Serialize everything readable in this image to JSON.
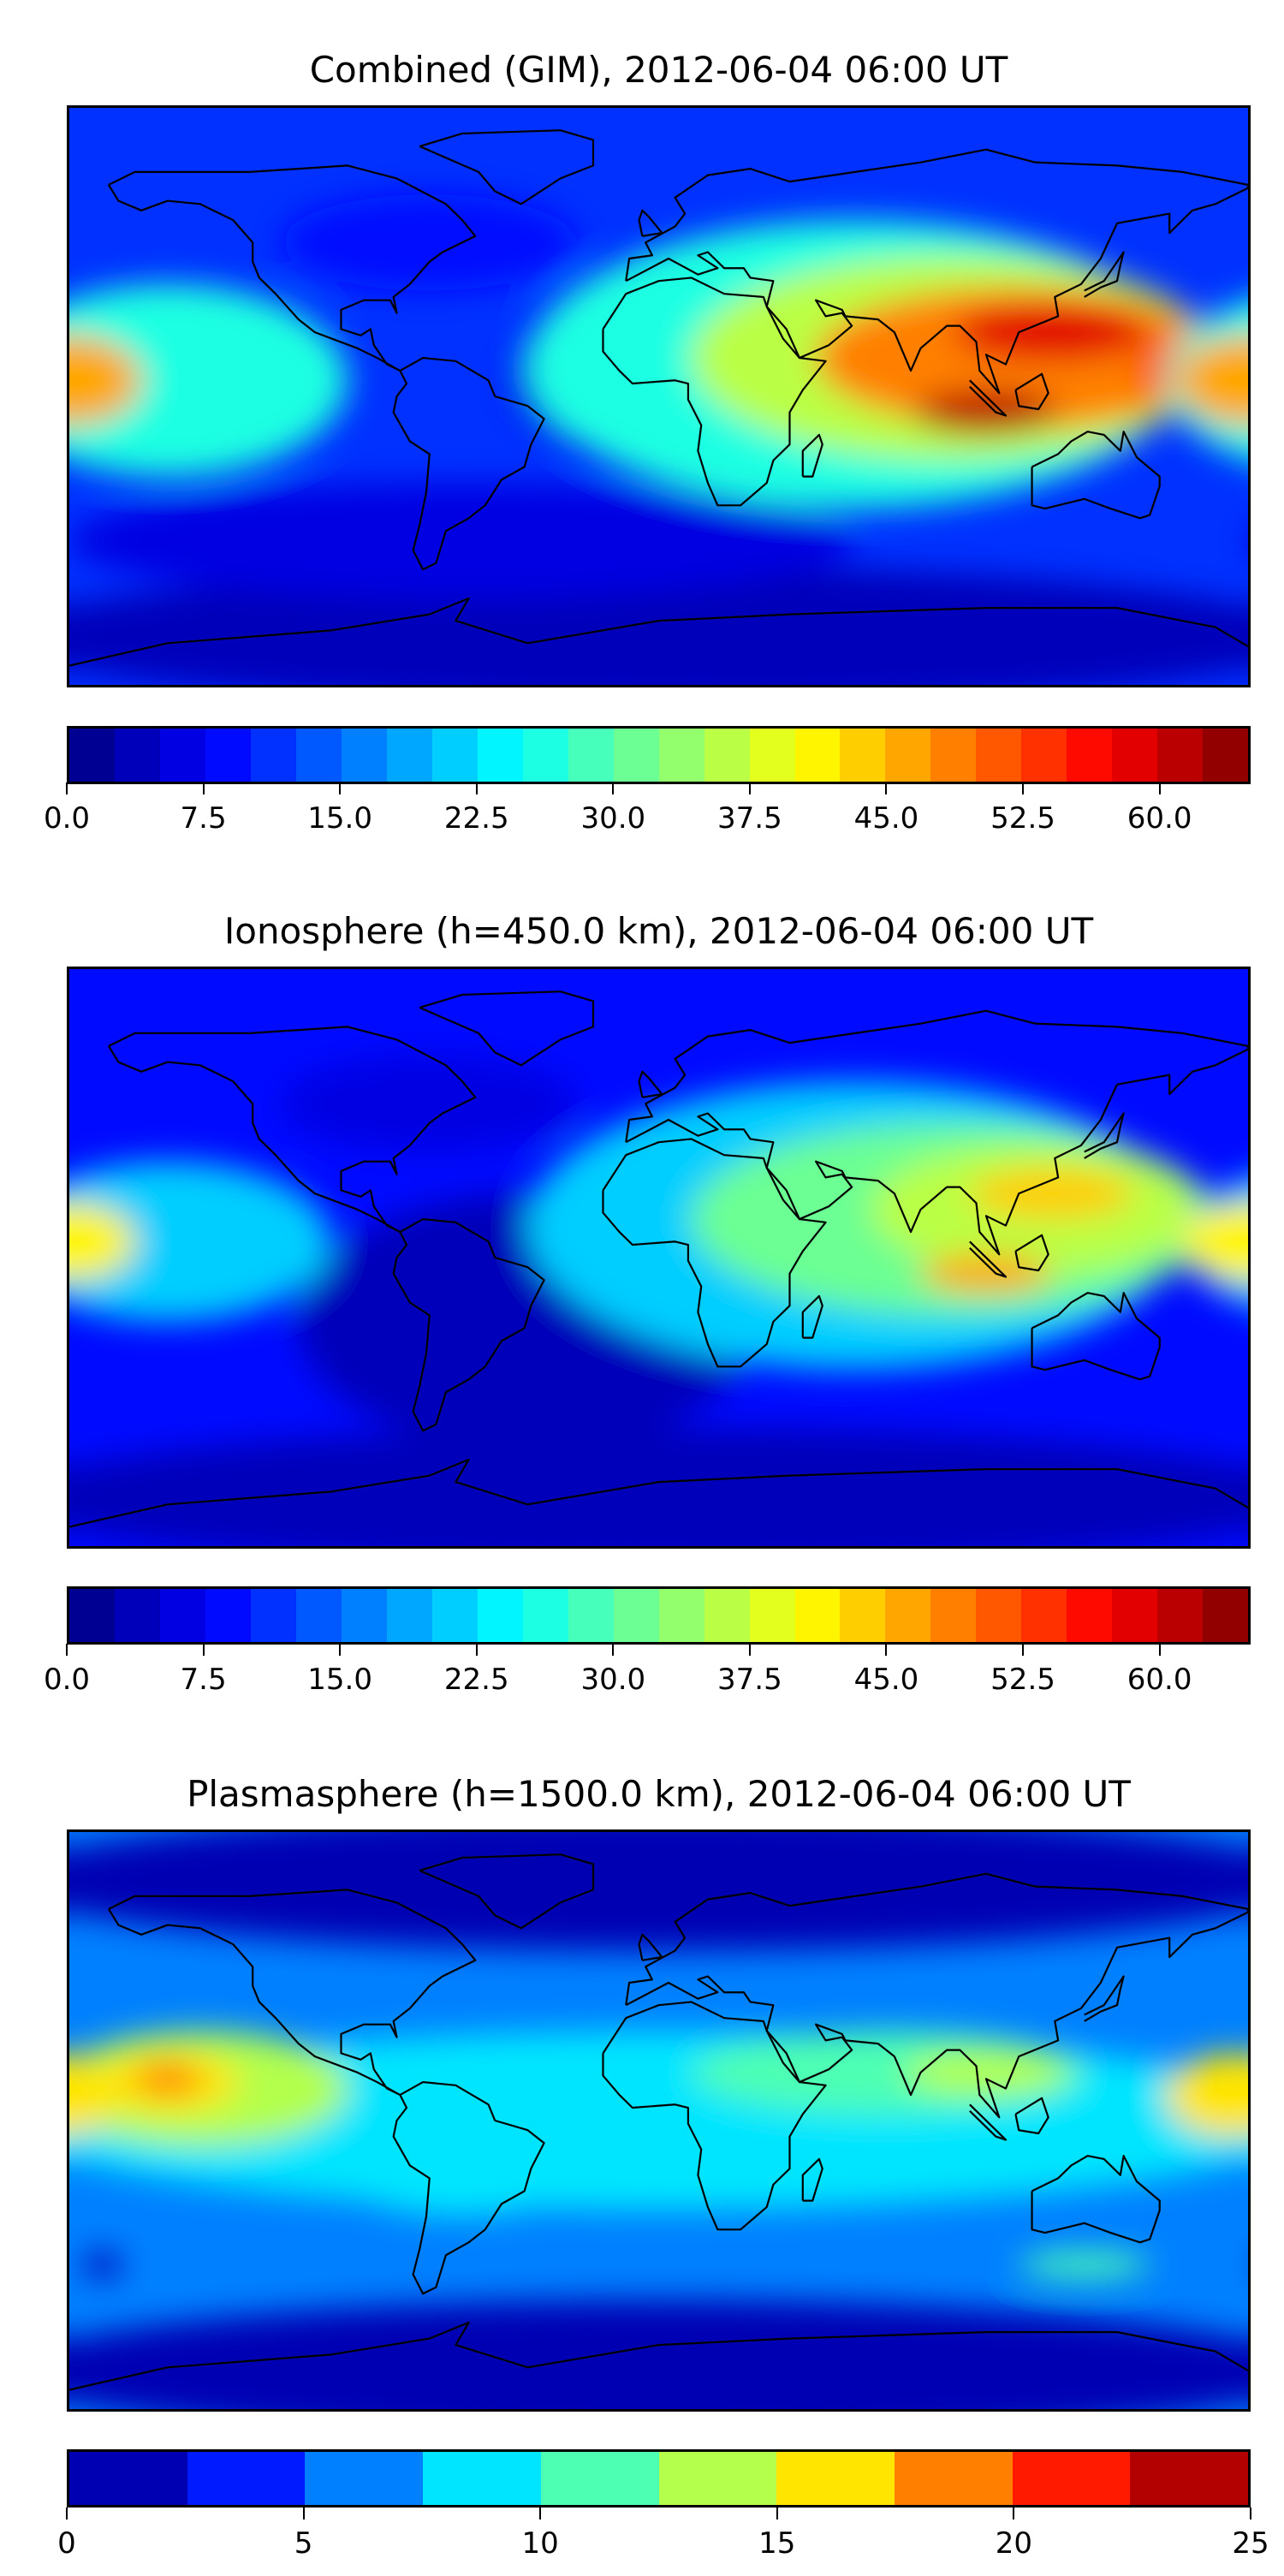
{
  "chart_data": [
    {
      "type": "heatmap",
      "title": "Combined (GIM), 2012-06-04 06:00 UT",
      "projection": "plate-carree",
      "lon_range": [
        -180,
        180
      ],
      "lat_range": [
        -90,
        90
      ],
      "colormap": "jet",
      "levels_min": 0,
      "levels_max": 65,
      "level_step": 2.5,
      "colorbar_ticks": [
        "0.0",
        "7.5",
        "15.0",
        "22.5",
        "30.0",
        "37.5",
        "45.0",
        "52.5",
        "60.0"
      ],
      "colorbar_tick_values": [
        0,
        7.5,
        15,
        22.5,
        30,
        37.5,
        45,
        52.5,
        60
      ],
      "background_value": 12,
      "features": [
        {
          "lon": 0,
          "lat": -75,
          "rx": 200,
          "ry": 22,
          "value": 4
        },
        {
          "lon": -60,
          "lat": -45,
          "rx": 120,
          "ry": 18,
          "value": 7
        },
        {
          "lon": -70,
          "lat": 48,
          "rx": 45,
          "ry": 15,
          "value": 8
        },
        {
          "lon": -20,
          "lat": 5,
          "rx": 25,
          "ry": 20,
          "value": 7
        },
        {
          "lon": 60,
          "lat": 10,
          "rx": 100,
          "ry": 45,
          "value": 27
        },
        {
          "lon": 90,
          "lat": 12,
          "rx": 80,
          "ry": 32,
          "value": 36
        },
        {
          "lon": 110,
          "lat": 12,
          "rx": 62,
          "ry": 22,
          "value": 48
        },
        {
          "lon": 120,
          "lat": 20,
          "rx": 30,
          "ry": 9,
          "value": 58
        },
        {
          "lon": 100,
          "lat": -5,
          "rx": 22,
          "ry": 7,
          "value": 60
        },
        {
          "lon": 170,
          "lat": 8,
          "rx": 25,
          "ry": 12,
          "value": 50
        },
        {
          "lon": -150,
          "lat": 5,
          "rx": 55,
          "ry": 30,
          "value": 25
        },
        {
          "lon": -180,
          "lat": 5,
          "rx": 22,
          "ry": 14,
          "value": 47
        }
      ]
    },
    {
      "type": "heatmap",
      "title": "Ionosphere  (h=450.0 km), 2012-06-04 06:00 UT",
      "projection": "plate-carree",
      "lon_range": [
        -180,
        180
      ],
      "lat_range": [
        -90,
        90
      ],
      "colormap": "jet",
      "levels_min": 0,
      "levels_max": 65,
      "level_step": 2.5,
      "colorbar_ticks": [
        "0.0",
        "7.5",
        "15.0",
        "22.5",
        "30.0",
        "37.5",
        "45.0",
        "52.5",
        "60.0"
      ],
      "colorbar_tick_values": [
        0,
        7.5,
        15,
        22.5,
        30,
        37.5,
        45,
        52.5,
        60
      ],
      "background_value": 9,
      "features": [
        {
          "lon": 0,
          "lat": -75,
          "rx": 200,
          "ry": 22,
          "value": 3
        },
        {
          "lon": -40,
          "lat": -20,
          "rx": 70,
          "ry": 40,
          "value": 4
        },
        {
          "lon": -70,
          "lat": 48,
          "rx": 45,
          "ry": 15,
          "value": 6
        },
        {
          "lon": 60,
          "lat": 10,
          "rx": 100,
          "ry": 45,
          "value": 22
        },
        {
          "lon": 90,
          "lat": 12,
          "rx": 80,
          "ry": 30,
          "value": 30
        },
        {
          "lon": 115,
          "lat": 15,
          "rx": 50,
          "ry": 20,
          "value": 37
        },
        {
          "lon": 120,
          "lat": 20,
          "rx": 25,
          "ry": 8,
          "value": 43
        },
        {
          "lon": 100,
          "lat": -5,
          "rx": 20,
          "ry": 6,
          "value": 45
        },
        {
          "lon": -150,
          "lat": 5,
          "rx": 50,
          "ry": 25,
          "value": 20
        },
        {
          "lon": -180,
          "lat": 5,
          "rx": 20,
          "ry": 12,
          "value": 40
        }
      ]
    },
    {
      "type": "heatmap",
      "title": "Plasmasphere (h=1500.0 km), 2012-06-04 06:00 UT",
      "projection": "plate-carree",
      "lon_range": [
        -180,
        180
      ],
      "lat_range": [
        -90,
        90
      ],
      "colormap": "jet",
      "levels_min": 0,
      "levels_max": 25,
      "level_step": 2.5,
      "colorbar_ticks": [
        "0",
        "5",
        "10",
        "15",
        "20",
        "25"
      ],
      "colorbar_tick_values": [
        0,
        5,
        10,
        15,
        20,
        25
      ],
      "background_value": 6,
      "features": [
        {
          "lon": 0,
          "lat": 75,
          "rx": 200,
          "ry": 22,
          "value": 1
        },
        {
          "lon": 0,
          "lat": -78,
          "rx": 200,
          "ry": 22,
          "value": 1
        },
        {
          "lon": 0,
          "lat": 0,
          "rx": 200,
          "ry": 28,
          "value": 9
        },
        {
          "lon": -60,
          "lat": -5,
          "rx": 50,
          "ry": 25,
          "value": 9
        },
        {
          "lon": -140,
          "lat": 10,
          "rx": 45,
          "ry": 18,
          "value": 14
        },
        {
          "lon": -150,
          "lat": 12,
          "rx": 22,
          "ry": 10,
          "value": 17
        },
        {
          "lon": -150,
          "lat": 13,
          "rx": 10,
          "ry": 5,
          "value": 19
        },
        {
          "lon": 70,
          "lat": 15,
          "rx": 60,
          "ry": 13,
          "value": 12
        },
        {
          "lon": 100,
          "lat": 15,
          "rx": 25,
          "ry": 7,
          "value": 14
        },
        {
          "lon": 175,
          "lat": 8,
          "rx": 20,
          "ry": 13,
          "value": 16
        },
        {
          "lon": 130,
          "lat": -45,
          "rx": 20,
          "ry": 4,
          "value": 10
        },
        {
          "lon": -170,
          "lat": -45,
          "rx": 6,
          "ry": 4,
          "value": 2
        }
      ]
    }
  ]
}
